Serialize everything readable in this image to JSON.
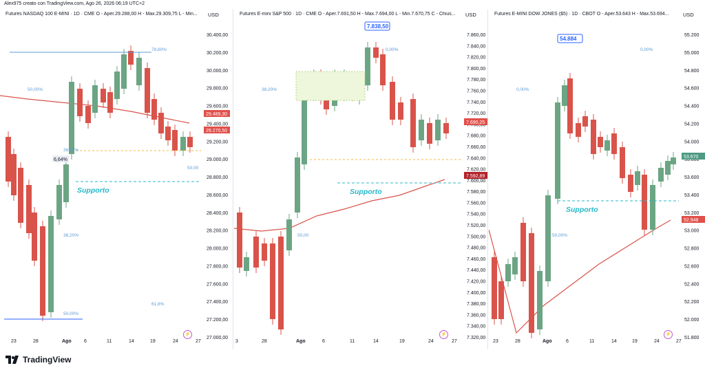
{
  "header": {
    "creator_line": "Alex975 creato con TradingView.com, Ago 26, 2026 06:19 UTC+2"
  },
  "footer": {
    "brand": "TradingView"
  },
  "panels": [
    {
      "title": "Futures NASDAQ 100 E-MINI · 1D · CME  O - Aper.29.288,00  H - Max.29.309,75  L - Min...",
      "currency": "USD",
      "price_ticks": [
        "30.400,00",
        "30.200,00",
        "30.000,00",
        "29.800,00",
        "29.600,00",
        "29.400,00",
        "29.200,00",
        "29.000,00",
        "28.800,00",
        "28.600,00",
        "28.400,00",
        "28.200,00",
        "28.000,00",
        "27.800,00",
        "27.600,00",
        "27.400,00",
        "27.200,00",
        "27.000,00"
      ],
      "date_ticks": [
        "23",
        "28",
        "Ago",
        "6",
        "11",
        "14",
        "19",
        "24",
        "27"
      ],
      "price_tags": [
        {
          "text": "29.489,30",
          "color": "#e0504a"
        },
        {
          "text": "29.270,50",
          "color": "#e0504a"
        }
      ],
      "fib_labels": [
        "78,60%",
        "50,00%",
        "38,20%",
        "50,00",
        "38,20%",
        "61,8%",
        "50,00%"
      ],
      "badge": "6,64%",
      "support_label": "Supporto"
    },
    {
      "title": "Futures E-mini S&P 500 · 1D · CME  O - Aper.7.691,50  H - Max.7.694,00  L - Min.7.670,75  C - Chius...",
      "currency": "USD",
      "price_ticks": [
        "7.860,00",
        "7.840,00",
        "7.820,00",
        "7.800,00",
        "7.780,00",
        "7.760,00",
        "7.740,00",
        "7.720,00",
        "7.700,00",
        "7.680,00",
        "7.660,00",
        "7.640,00",
        "7.620,00",
        "7.600,00",
        "7.580,00",
        "7.560,00",
        "7.540,00",
        "7.520,00",
        "7.500,00",
        "7.480,00",
        "7.460,00",
        "7.440,00",
        "7.420,00",
        "7.400,00",
        "7.380,00",
        "7.360,00",
        "7.340,00",
        "7.320,00"
      ],
      "date_ticks": [
        "3",
        "28",
        "Ago",
        "6",
        "11",
        "14",
        "19",
        "24",
        "27"
      ],
      "price_tags": [
        {
          "text": "7.690,25",
          "color": "#e0504a"
        },
        {
          "text": "7.592,89",
          "color": "#b2222a"
        }
      ],
      "fib_labels": [
        "0,00%",
        "38,20%",
        "50,00"
      ],
      "callout": "7.838,50",
      "support_label": "Supporto"
    },
    {
      "title": "Futures E-MINI DOW JONES ($5) · 1D · CBOT  O - Aper.53.643  H - Max.53.694...",
      "currency": "USD",
      "price_ticks": [
        "55.200",
        "55.000",
        "54.800",
        "54.600",
        "54.400",
        "54.200",
        "54.000",
        "53.800",
        "53.600",
        "53.400",
        "53.200",
        "53.000",
        "52.800",
        "52.600",
        "52.400",
        "52.200",
        "52.000",
        "51.800"
      ],
      "date_ticks": [
        "23",
        "28",
        "Ago",
        "6",
        "11",
        "14",
        "19",
        "24",
        "27"
      ],
      "price_tags": [
        {
          "text": "53.670",
          "color": "#4e9a82"
        },
        {
          "text": "52.948",
          "color": "#e0504a"
        }
      ],
      "fib_labels": [
        "0,00%",
        "0,00%",
        "50,00%"
      ],
      "callout": "54.884",
      "support_label": "Supporto"
    }
  ],
  "colors": {
    "up": "#6ba583",
    "down": "#d9534a",
    "ma": "#d9534a",
    "fib_blue": "#5b9bd5",
    "support": "#27b7c8",
    "orange": "#f5b942"
  }
}
